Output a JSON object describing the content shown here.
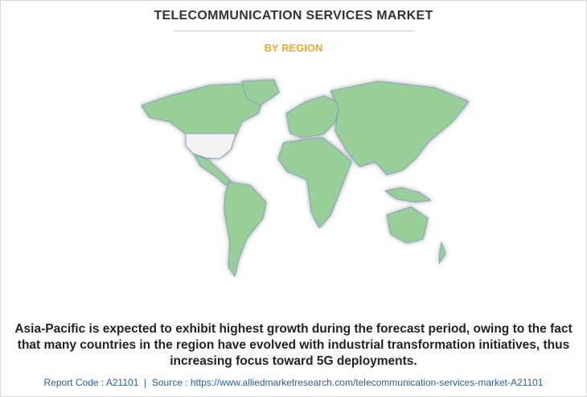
{
  "header": {
    "title": "TELECOMMUNICATION SERVICES MARKET",
    "subtitle": "BY REGION"
  },
  "description": "Asia-Pacific is expected to exhibit highest growth during the forecast period, owing to the fact that many countries in the region have evolved with industrial transformation initiatives, thus increasing focus toward 5G deployments.",
  "footer": {
    "report_code": "Report Code : A21101",
    "separator": "|",
    "source": "Source : https://www.alliedmarketresearch.com/telecommunication-services-market-A21101"
  }
}
